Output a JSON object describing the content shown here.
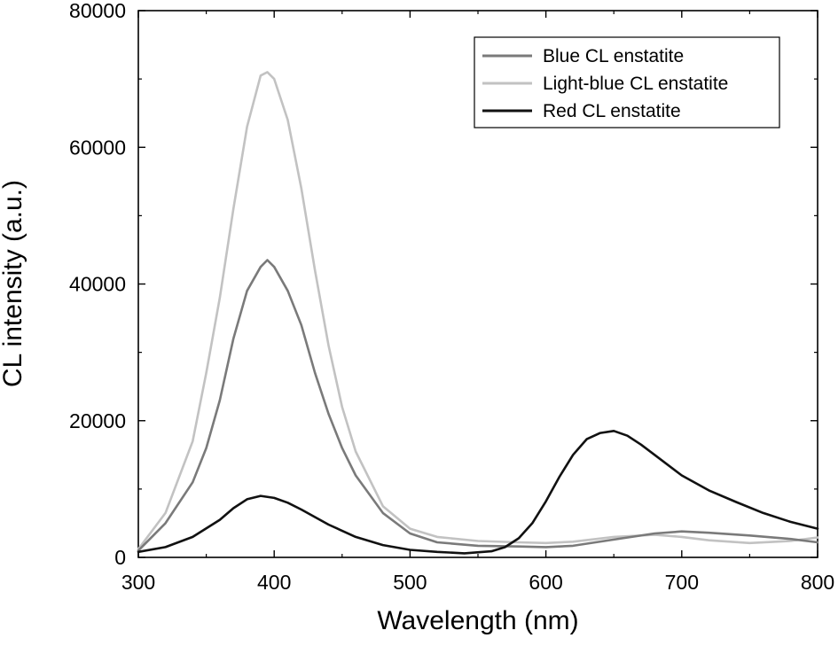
{
  "chart_data": {
    "type": "line",
    "title": "",
    "xlabel": "Wavelength (nm)",
    "ylabel": "CL intensity (a.u.)",
    "xlim": [
      300,
      800
    ],
    "ylim": [
      0,
      80000
    ],
    "xticks": [
      300,
      400,
      500,
      600,
      700,
      800
    ],
    "yticks": [
      0,
      20000,
      40000,
      60000,
      80000
    ],
    "xtick_labels": [
      "300",
      "400",
      "500",
      "600",
      "700",
      "800"
    ],
    "ytick_labels": [
      "0",
      "20000",
      "40000",
      "60000",
      "80000"
    ],
    "grid": false,
    "legend_position": "top-right",
    "series": [
      {
        "name": "Blue CL enstatite",
        "color": "#7a7a7a",
        "x": [
          300,
          320,
          340,
          350,
          360,
          370,
          380,
          390,
          395,
          400,
          410,
          420,
          430,
          440,
          450,
          460,
          480,
          500,
          520,
          550,
          580,
          600,
          620,
          650,
          680,
          700,
          720,
          750,
          780,
          800
        ],
        "y": [
          1000,
          5000,
          11000,
          16000,
          23000,
          32000,
          39000,
          42500,
          43500,
          42500,
          39000,
          34000,
          27000,
          21000,
          16000,
          12000,
          6500,
          3500,
          2200,
          1700,
          1600,
          1500,
          1700,
          2600,
          3500,
          3800,
          3600,
          3200,
          2700,
          2200
        ]
      },
      {
        "name": "Light-blue CL enstatite",
        "color": "#c2c2c2",
        "x": [
          300,
          320,
          340,
          350,
          360,
          370,
          380,
          390,
          395,
          400,
          410,
          420,
          430,
          440,
          450,
          460,
          480,
          500,
          520,
          550,
          580,
          600,
          620,
          650,
          680,
          700,
          720,
          750,
          780,
          800
        ],
        "y": [
          1200,
          6500,
          17000,
          27000,
          38000,
          51000,
          63000,
          70500,
          71000,
          70000,
          64000,
          54000,
          42000,
          31000,
          22000,
          15500,
          7500,
          4200,
          3000,
          2400,
          2200,
          2100,
          2300,
          3000,
          3300,
          3000,
          2500,
          2100,
          2400,
          2900
        ]
      },
      {
        "name": "Red CL enstatite",
        "color": "#111111",
        "x": [
          300,
          320,
          340,
          360,
          370,
          380,
          390,
          400,
          410,
          420,
          440,
          460,
          480,
          500,
          520,
          540,
          560,
          570,
          580,
          590,
          600,
          610,
          620,
          630,
          640,
          650,
          660,
          670,
          680,
          700,
          720,
          740,
          760,
          780,
          800
        ],
        "y": [
          800,
          1500,
          3000,
          5500,
          7200,
          8500,
          9000,
          8700,
          8000,
          7000,
          4800,
          3000,
          1800,
          1100,
          800,
          600,
          900,
          1500,
          2800,
          5000,
          8200,
          11800,
          15000,
          17300,
          18200,
          18500,
          17800,
          16500,
          15000,
          12000,
          9800,
          8100,
          6500,
          5200,
          4200
        ]
      }
    ]
  }
}
